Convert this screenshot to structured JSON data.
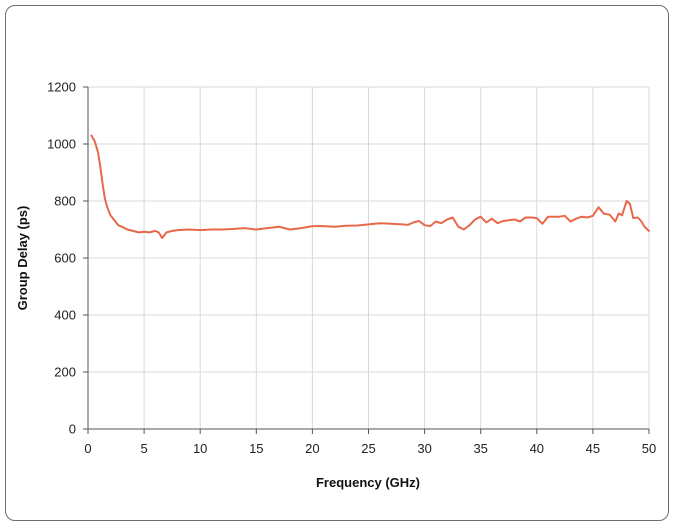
{
  "chart_data": {
    "type": "line",
    "title": "",
    "xlabel": "Frequency (GHz)",
    "ylabel": "Group Delay (ps)",
    "xlim": [
      0,
      50
    ],
    "ylim": [
      0,
      1200
    ],
    "x_ticks": [
      "0",
      "5",
      "10",
      "15",
      "20",
      "25",
      "30",
      "35",
      "40",
      "45",
      "50"
    ],
    "y_ticks": [
      "0",
      "200",
      "400",
      "600",
      "800",
      "1000",
      "1200"
    ],
    "grid": true,
    "legend": "none",
    "line_color": "#e8694a",
    "series": [
      {
        "x": [
          0.3,
          0.6,
          0.9,
          1.1,
          1.3,
          1.5,
          1.7,
          2.0,
          2.3,
          2.7,
          3.0,
          3.5,
          4.0,
          4.5,
          5.0,
          5.5,
          6.0,
          6.3,
          6.6,
          7.0,
          7.5,
          8.0,
          9.0,
          10.0,
          11.0,
          12.0,
          13.0,
          14.0,
          15.0,
          16.0,
          17.0,
          17.5,
          18.0,
          19.0,
          20.0,
          21.0,
          22.0,
          23.0,
          24.0,
          25.0,
          26.0,
          27.0,
          28.0,
          28.5,
          29.0,
          29.5,
          30.0,
          30.5,
          31.0,
          31.5,
          32.0,
          32.5,
          33.0,
          33.5,
          34.0,
          34.5,
          35.0,
          35.5,
          36.0,
          36.5,
          37.0,
          38.0,
          38.5,
          39.0,
          39.5,
          40.0,
          40.5,
          41.0,
          42.0,
          42.5,
          43.0,
          43.5,
          44.0,
          44.5,
          45.0,
          45.5,
          46.0,
          46.5,
          47.0,
          47.3,
          47.6,
          48.0,
          48.3,
          48.6,
          49.0,
          49.3,
          49.6,
          50.0
        ],
        "y": [
          1030,
          1010,
          970,
          920,
          860,
          810,
          780,
          750,
          735,
          715,
          710,
          700,
          695,
          690,
          692,
          690,
          695,
          690,
          670,
          690,
          695,
          698,
          700,
          698,
          700,
          700,
          702,
          705,
          700,
          705,
          710,
          705,
          700,
          705,
          712,
          712,
          710,
          713,
          714,
          718,
          722,
          720,
          718,
          716,
          725,
          730,
          715,
          712,
          728,
          722,
          735,
          742,
          710,
          700,
          715,
          735,
          745,
          725,
          738,
          722,
          730,
          735,
          728,
          742,
          742,
          740,
          720,
          745,
          745,
          748,
          728,
          738,
          745,
          742,
          748,
          778,
          755,
          752,
          728,
          756,
          750,
          800,
          790,
          740,
          742,
          730,
          710,
          695
        ]
      }
    ]
  }
}
